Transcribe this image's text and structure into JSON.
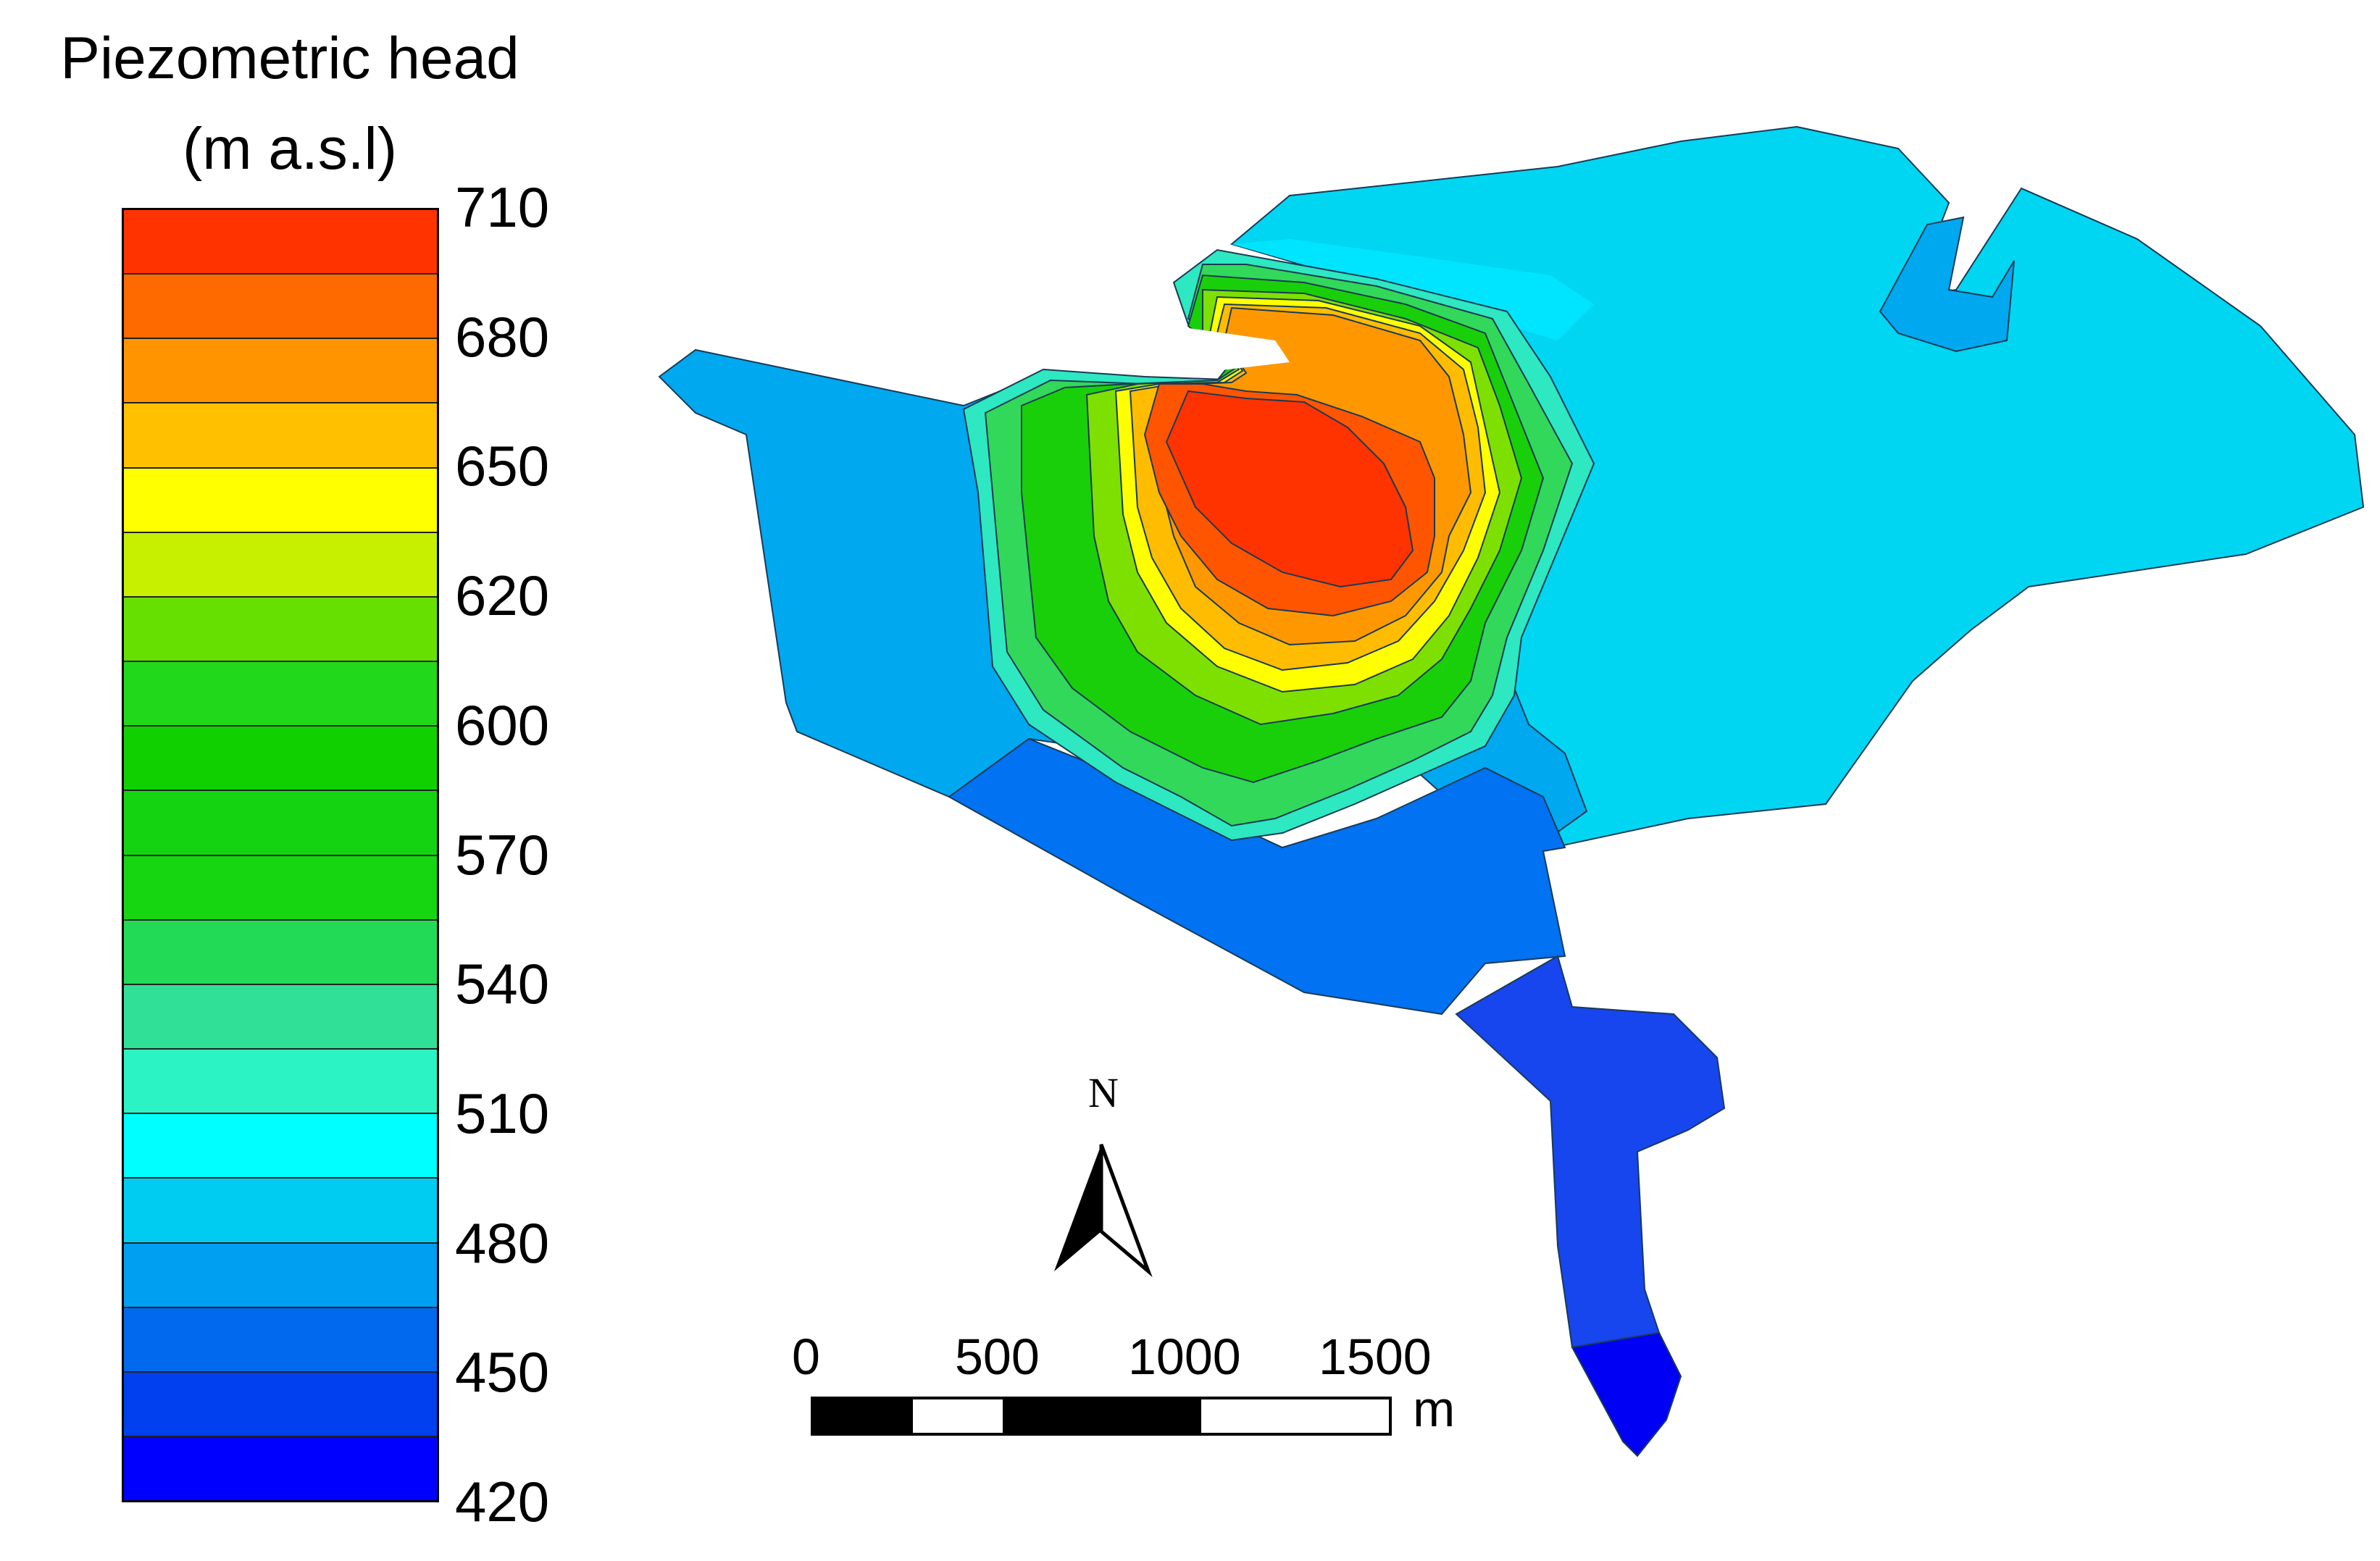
{
  "legend": {
    "title_line1": "Piezometric head",
    "title_line2": "(m a.s.l)",
    "ticks": [
      "710",
      "680",
      "650",
      "620",
      "600",
      "570",
      "540",
      "510",
      "480",
      "450",
      "420"
    ],
    "colors": [
      "#ff3300",
      "#ff6a00",
      "#ff9400",
      "#ffc000",
      "#ffff00",
      "#c6f000",
      "#66e000",
      "#22d81a",
      "#11d000",
      "#14d411",
      "#16d611",
      "#22da55",
      "#2fe096",
      "#2cf3c3",
      "#00ffff",
      "#00ccf2",
      "#009ff2",
      "#0069ee",
      "#0040ee",
      "#0000ff"
    ]
  },
  "map": {
    "colors": {
      "lightcyan": "#00d6f2",
      "cyan": "#00e5ff",
      "sky": "#00a8f0",
      "blue1": "#0072f2",
      "blue2": "#1745ee",
      "blue3": "#0000f4",
      "teal": "#2de8c0",
      "green1": "#32d85a",
      "green2": "#19cf0a",
      "yellowgreen": "#7ee000",
      "yellow": "#ffff00",
      "amber": "#ffbc00",
      "orange": "#ff9800",
      "redorange": "#ff5500",
      "red": "#ff3300"
    }
  },
  "scale_bar": {
    "labels": [
      "0",
      "500",
      "1000",
      "1500"
    ],
    "unit": "m"
  },
  "north_arrow": {
    "label": "N",
    "icon": "north-arrow-icon"
  }
}
